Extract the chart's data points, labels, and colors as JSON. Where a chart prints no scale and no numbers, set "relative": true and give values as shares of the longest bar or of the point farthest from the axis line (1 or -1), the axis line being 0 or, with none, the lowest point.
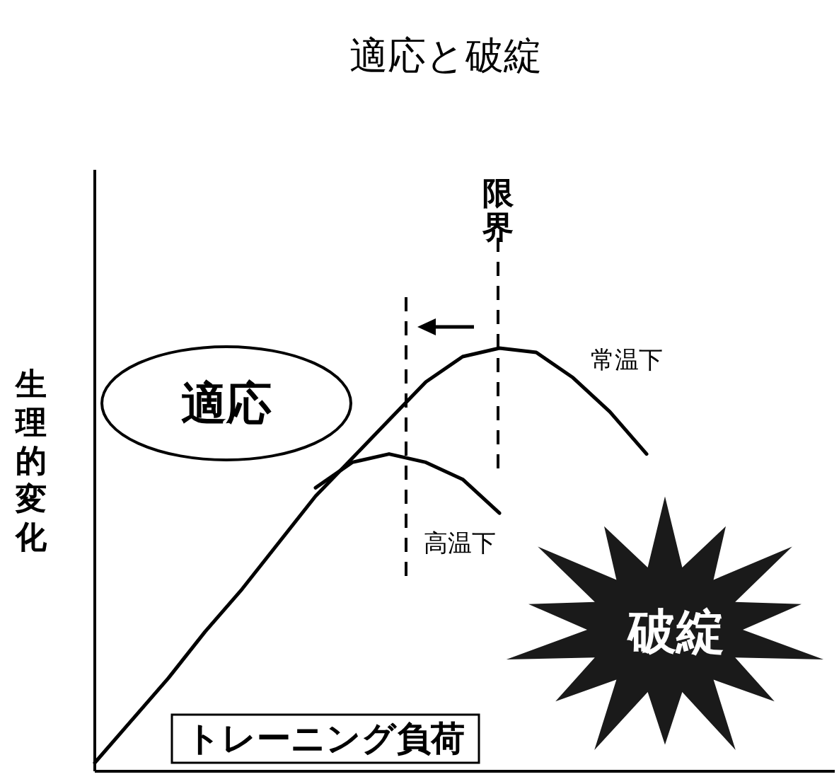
{
  "chart_data": {
    "type": "line",
    "title": "適応と破綻",
    "xlabel": "トレーニング負荷",
    "ylabel": "生理的変化",
    "relative": true,
    "marker": "none",
    "line_style": "solid",
    "categories": [
      null,
      null,
      null,
      null,
      null,
      null,
      null,
      null,
      null,
      null,
      null,
      null,
      null,
      null,
      null,
      null,
      null,
      null,
      null,
      null,
      null
    ],
    "series": [
      {
        "name": "常温下",
        "color": "#000000",
        "values": [
          0.02,
          0.12,
          0.22,
          0.33,
          0.43,
          0.54,
          0.65,
          0.74,
          0.83,
          0.92,
          0.98,
          1,
          0.99,
          0.93,
          0.85,
          0.75,
          null,
          null,
          null,
          null,
          null
        ]
      },
      {
        "name": "高温下",
        "color": "#000000",
        "values": [
          null,
          null,
          null,
          null,
          null,
          null,
          0.67,
          0.73,
          0.75,
          0.73,
          0.69,
          0.61,
          null,
          null,
          null,
          null,
          null,
          null,
          null,
          null,
          null
        ]
      }
    ],
    "annotations": [
      "適応",
      "破綻",
      "限界"
    ]
  }
}
